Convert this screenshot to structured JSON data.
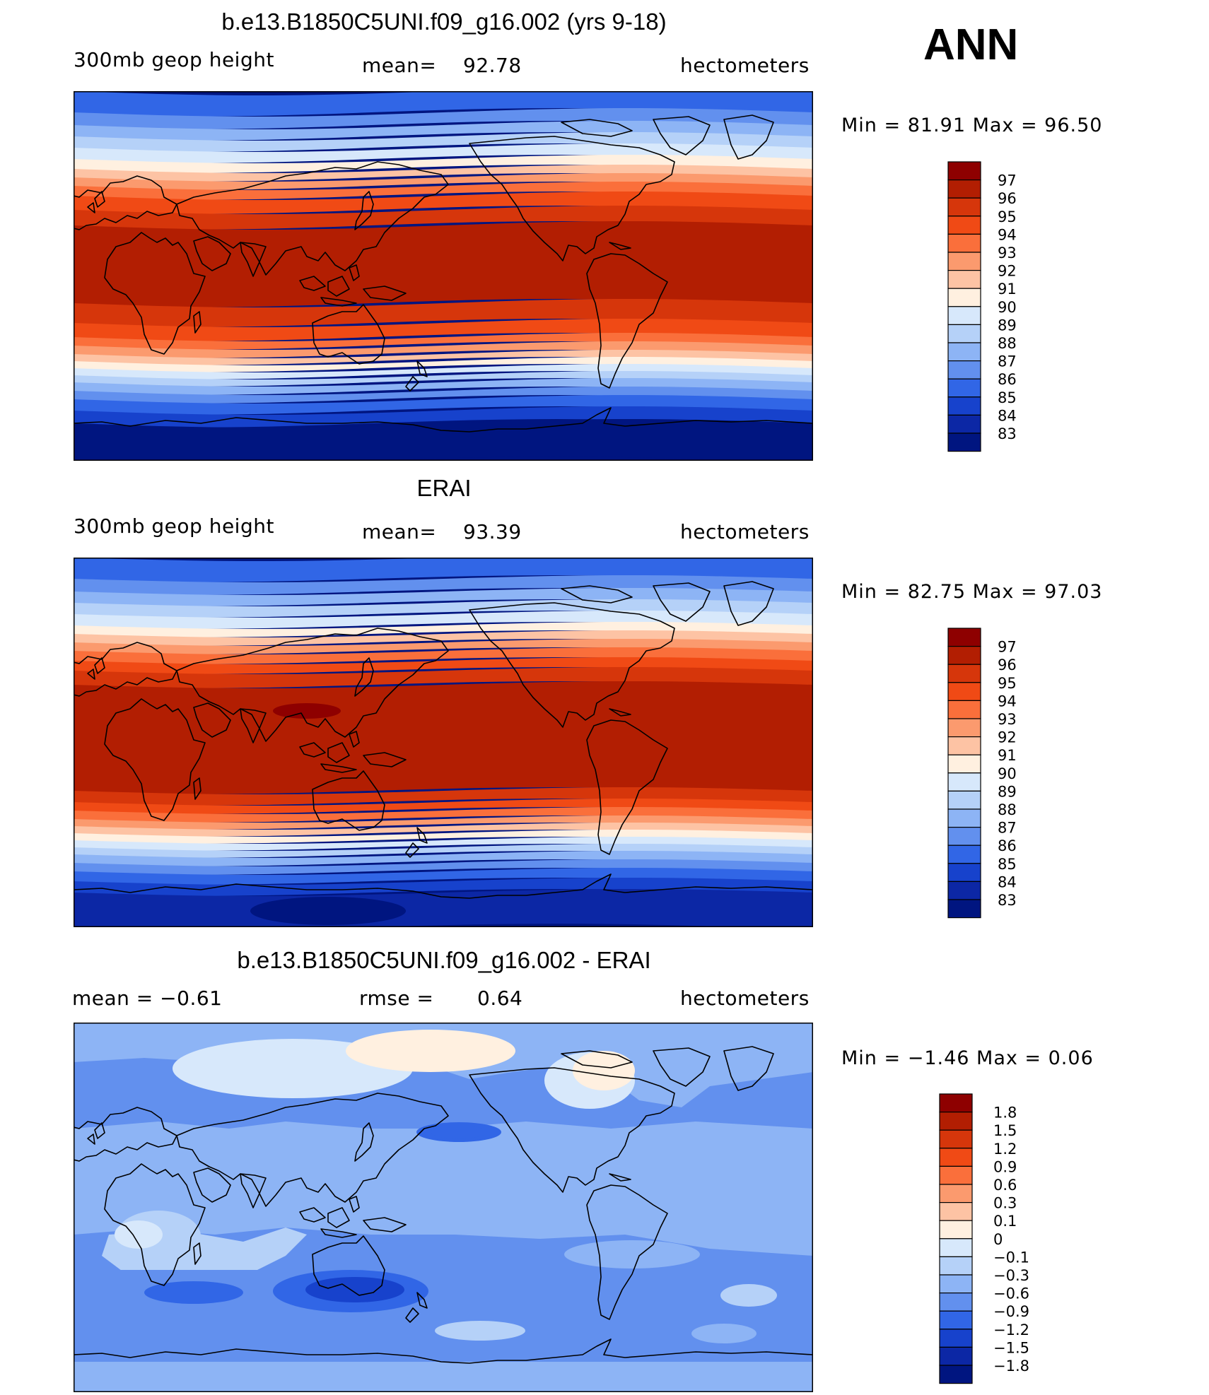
{
  "season": "ANN",
  "panels": [
    {
      "title": "b.e13.B1850C5UNI.f09_g16.002 (yrs 9-18)",
      "left_label": "300mb  geop  height",
      "mid_label": "mean=",
      "mid_value": "92.78",
      "units": "hectometers",
      "minmax": "Min =   81.91  Max =   96.50",
      "levels": [
        "97",
        "96",
        "95",
        "94",
        "93",
        "92",
        "91",
        "90",
        "89",
        "88",
        "87",
        "86",
        "85",
        "84",
        "83"
      ],
      "colors": [
        "#8e0000",
        "#b21e02",
        "#d6360b",
        "#f04a15",
        "#fa6f3b",
        "#fb9a6e",
        "#fdc3a4",
        "#fff0e0",
        "#d7e8fb",
        "#b5d1f8",
        "#8db4f5",
        "#6290ee",
        "#3166e6",
        "#1742cc",
        "#0c27a5",
        "#001580"
      ]
    },
    {
      "title": "ERAI",
      "left_label": "300mb  geop  height",
      "mid_label": "mean=",
      "mid_value": "93.39",
      "units": "hectometers",
      "minmax": "Min =   82.75  Max =   97.03",
      "levels": [
        "97",
        "96",
        "95",
        "94",
        "93",
        "92",
        "91",
        "90",
        "89",
        "88",
        "87",
        "86",
        "85",
        "84",
        "83"
      ],
      "colors": [
        "#8e0000",
        "#b21e02",
        "#d6360b",
        "#f04a15",
        "#fa6f3b",
        "#fb9a6e",
        "#fdc3a4",
        "#fff0e0",
        "#d7e8fb",
        "#b5d1f8",
        "#8db4f5",
        "#6290ee",
        "#3166e6",
        "#1742cc",
        "#0c27a5",
        "#001580"
      ]
    },
    {
      "title": "b.e13.B1850C5UNI.f09_g16.002 - ERAI",
      "left_label": "mean =    −0.61",
      "mid_label": "rmse =",
      "mid_value": "0.64",
      "units": "hectometers",
      "minmax": "Min =   −1.46  Max =     0.06",
      "levels": [
        "1.8",
        "1.5",
        "1.2",
        "0.9",
        "0.6",
        "0.3",
        "0.1",
        "0",
        "−0.1",
        "−0.3",
        "−0.6",
        "−0.9",
        "−1.2",
        "−1.5",
        "−1.8"
      ],
      "colors": [
        "#8e0000",
        "#b21e02",
        "#d6360b",
        "#f04a15",
        "#fa6f3b",
        "#fb9a6e",
        "#fdc3a4",
        "#fff0e0",
        "#d7e8fb",
        "#b5d1f8",
        "#8db4f5",
        "#6290ee",
        "#3166e6",
        "#1742cc",
        "#0c27a5",
        "#001580"
      ]
    }
  ]
}
